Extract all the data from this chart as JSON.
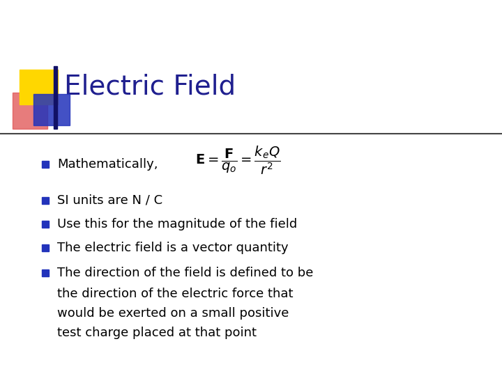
{
  "title": "Electric Field",
  "title_color": "#1f1f8f",
  "title_fontsize": 28,
  "background_color": "#ffffff",
  "accent_yellow": "#FFD700",
  "accent_red": "#e05050",
  "accent_blue": "#2233bb",
  "accent_dark": "#111166",
  "text_fontsize": 13,
  "formula_fontsize": 14,
  "bullet_color": "#2233bb",
  "bullet1": "Mathematically,",
  "bullet2": "SI units are N / C",
  "bullet3": "Use this for the magnitude of the field",
  "bullet4": "The electric field is a vector quantity",
  "bullet5a": "The direction of the field is defined to be",
  "bullet5b": "the direction of the electric force that",
  "bullet5c": "would be exerted on a small positive",
  "bullet5d": "test charge placed at that point"
}
